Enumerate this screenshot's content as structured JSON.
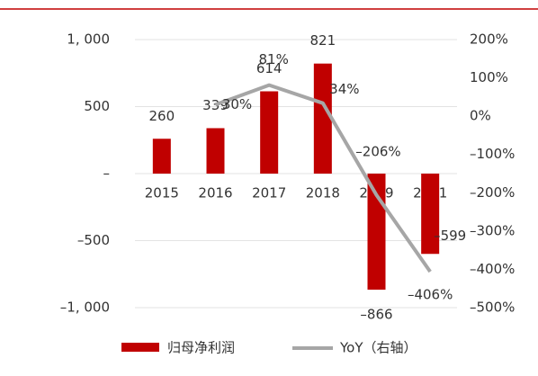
{
  "chart_data": {
    "type": "bar",
    "categories": [
      "2015",
      "2016",
      "2017",
      "2018",
      "2019",
      "2001"
    ],
    "series": [
      {
        "name": "归母净利润",
        "color": "#c00000",
        "values": [
          260,
          339,
          614,
          821,
          -866,
          -599
        ],
        "value_labels": [
          "260",
          "339",
          "614",
          "821",
          "–866",
          "–599"
        ]
      },
      {
        "name": "YoY（右轴）",
        "type": "line",
        "axis": "y2",
        "color": "#a6a6a6",
        "values": [
          null,
          30,
          81,
          34,
          -206,
          -406
        ],
        "value_labels": [
          null,
          "30%",
          "81%",
          "34%",
          "–206%",
          "–406%"
        ]
      }
    ],
    "ylim": [
      -1000,
      1000
    ],
    "yticks": [
      {
        "value": 1000,
        "label": "1, 000"
      },
      500,
      {
        "value": 0,
        "label": "–"
      },
      {
        "value": -500,
        "label": "–500"
      },
      {
        "value": -1000,
        "label": "–1, 000"
      }
    ],
    "y2lim": [
      -500,
      200
    ],
    "y2ticks": [
      {
        "value": 200,
        "label": "200%"
      },
      {
        "value": 100,
        "label": "100%"
      },
      {
        "value": 0,
        "label": "0%"
      },
      {
        "value": -100,
        "label": "–100%"
      },
      {
        "value": -200,
        "label": "–200%"
      },
      {
        "value": -300,
        "label": "–300%"
      },
      {
        "value": -400,
        "label": "–400%"
      },
      {
        "value": -500,
        "label": "–500%"
      }
    ],
    "grid": true,
    "legend": "bottom"
  }
}
